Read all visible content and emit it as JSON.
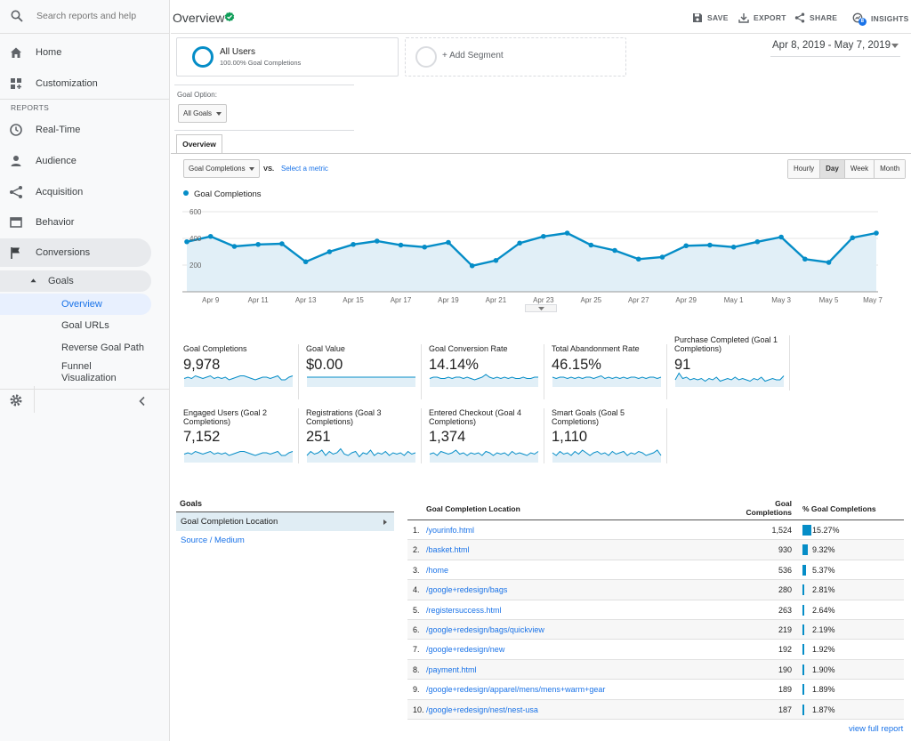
{
  "sidebar": {
    "search_placeholder": "Search reports and help",
    "home": "Home",
    "customization": "Customization",
    "reports_section": "REPORTS",
    "items": [
      "Real-Time",
      "Audience",
      "Acquisition",
      "Behavior",
      "Conversions"
    ],
    "goals": "Goals",
    "goal_subitems": [
      "Overview",
      "Goal URLs",
      "Reverse Goal Path",
      "Funnel Visualization"
    ]
  },
  "header": {
    "title": "Overview",
    "actions": [
      "SAVE",
      "EXPORT",
      "SHARE",
      "INSIGHTS"
    ],
    "insights_badge": "8"
  },
  "segments": {
    "all_users": "All Users",
    "all_users_sub": "100.00% Goal Completions",
    "add_segment": "+ Add Segment"
  },
  "date_range": "Apr 8, 2019 - May 7, 2019",
  "goal_option": {
    "label": "Goal Option:",
    "value": "All Goals"
  },
  "tab": "Overview",
  "metric_select": "Goal Completions",
  "vs": "VS.",
  "select_metric": "Select a metric",
  "periods": [
    "Hourly",
    "Day",
    "Week",
    "Month"
  ],
  "active_period": "Day",
  "chart_data": {
    "type": "area",
    "series": [
      {
        "name": "Goal Completions",
        "values": [
          375,
          415,
          340,
          355,
          360,
          225,
          300,
          355,
          380,
          350,
          335,
          370,
          195,
          235,
          365,
          415,
          440,
          350,
          310,
          245,
          260,
          345,
          350,
          335,
          375,
          410,
          245,
          220,
          405,
          440
        ]
      }
    ],
    "x_tick_labels": [
      "Apr 9",
      "Apr 11",
      "Apr 13",
      "Apr 15",
      "Apr 17",
      "Apr 19",
      "Apr 21",
      "Apr 23",
      "Apr 25",
      "Apr 27",
      "Apr 29",
      "May 1",
      "May 3",
      "May 5",
      "May 7"
    ],
    "y_tick_labels": [
      "600",
      "400",
      "200"
    ],
    "ylim": [
      0,
      600
    ],
    "color": "#058dc7"
  },
  "scorecards": [
    {
      "title": "Goal Completions",
      "value": "9,978"
    },
    {
      "title": "Goal Value",
      "value": "$0.00"
    },
    {
      "title": "Goal Conversion Rate",
      "value": "14.14%"
    },
    {
      "title": "Total Abandonment Rate",
      "value": "46.15%"
    },
    {
      "title": "Purchase Completed (Goal 1 Completions)",
      "value": "91"
    },
    {
      "title": "Engaged Users (Goal 2 Completions)",
      "value": "7,152"
    },
    {
      "title": "Registrations (Goal 3 Completions)",
      "value": "251"
    },
    {
      "title": "Entered Checkout (Goal 4 Completions)",
      "value": "1,374"
    },
    {
      "title": "Smart Goals (Goal 5 Completions)",
      "value": "1,110"
    }
  ],
  "goals_panel": {
    "heading": "Goals",
    "selected": "Goal Completion Location",
    "other": "Source / Medium"
  },
  "table": {
    "col_location": "Goal Completion Location",
    "col_completions": "Goal Completions",
    "col_percent": "% Goal Completions",
    "rows": [
      {
        "idx": "1.",
        "loc": "/yourinfo.html",
        "num": "1,524",
        "pct": "15.27%",
        "share": 15.27
      },
      {
        "idx": "2.",
        "loc": "/basket.html",
        "num": "930",
        "pct": "9.32%",
        "share": 9.32
      },
      {
        "idx": "3.",
        "loc": "/home",
        "num": "536",
        "pct": "5.37%",
        "share": 5.37
      },
      {
        "idx": "4.",
        "loc": "/google+redesign/bags",
        "num": "280",
        "pct": "2.81%",
        "share": 2.81
      },
      {
        "idx": "5.",
        "loc": "/registersuccess.html",
        "num": "263",
        "pct": "2.64%",
        "share": 2.64
      },
      {
        "idx": "6.",
        "loc": "/google+redesign/bags/quickview",
        "num": "219",
        "pct": "2.19%",
        "share": 2.19
      },
      {
        "idx": "7.",
        "loc": "/google+redesign/new",
        "num": "192",
        "pct": "1.92%",
        "share": 1.92
      },
      {
        "idx": "8.",
        "loc": "/payment.html",
        "num": "190",
        "pct": "1.90%",
        "share": 1.9
      },
      {
        "idx": "9.",
        "loc": "/google+redesign/apparel/mens/mens+warm+gear",
        "num": "189",
        "pct": "1.89%",
        "share": 1.89
      },
      {
        "idx": "10.",
        "loc": "/google+redesign/nest/nest-usa",
        "num": "187",
        "pct": "1.87%",
        "share": 1.87
      }
    ],
    "view_full": "view full report"
  },
  "colors": {
    "accent": "#058dc7",
    "link": "#1a73e8",
    "check": "#0f9d58"
  }
}
